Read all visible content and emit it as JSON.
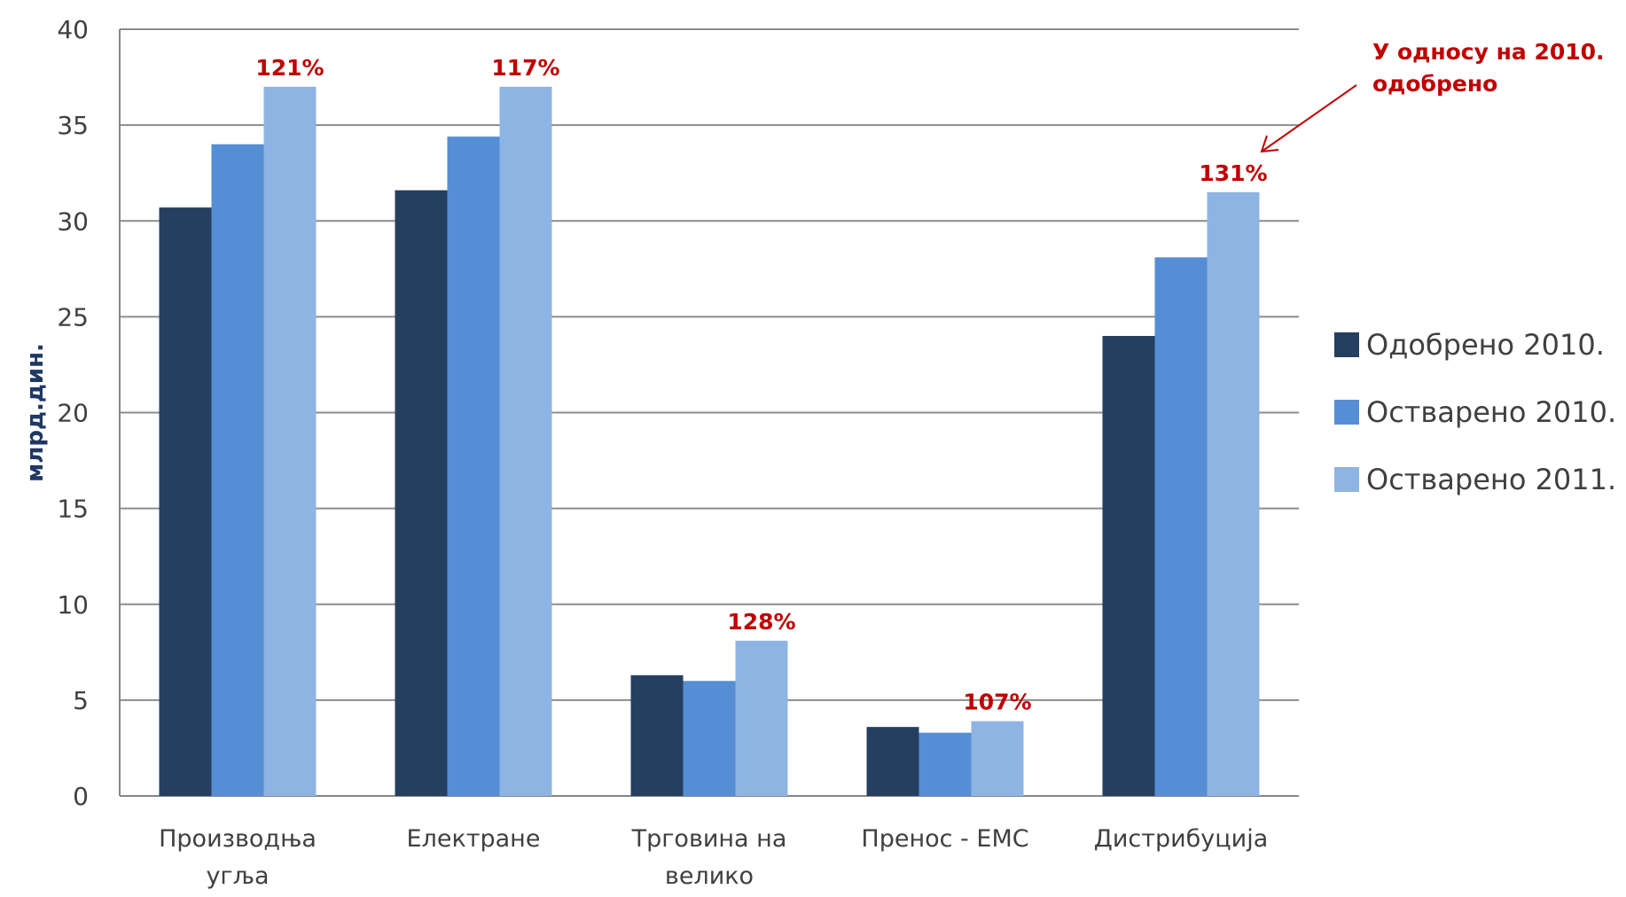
{
  "chart_data": {
    "type": "bar",
    "title": "",
    "xlabel": "",
    "ylabel": "млрд.дин.",
    "ylim": [
      0,
      40
    ],
    "yticks": [
      0,
      5,
      10,
      15,
      20,
      25,
      30,
      35,
      40
    ],
    "grid": true,
    "legend_position": "right",
    "categories": [
      [
        "Производња",
        "угља"
      ],
      [
        "Електране"
      ],
      [
        "Трговина на",
        "велико"
      ],
      [
        "Пренос - ЕМС"
      ],
      [
        "Дистрибуција"
      ]
    ],
    "series": [
      {
        "name": "Одобрено 2010.",
        "color": "#243f60",
        "values": [
          30.7,
          31.6,
          6.3,
          3.6,
          24.0
        ]
      },
      {
        "name": "Остварено 2010.",
        "color": "#558ed5",
        "values": [
          34.0,
          34.4,
          6.0,
          3.3,
          28.1
        ]
      },
      {
        "name": "Остварено 2011.",
        "color": "#8eb4e3",
        "values": [
          37.0,
          37.0,
          8.1,
          3.9,
          31.5
        ]
      }
    ],
    "data_labels": [
      "121%",
      "117%",
      "128%",
      "107%",
      "131%"
    ],
    "annotation": {
      "lines": [
        "У односу на 2010.",
        "одобрено"
      ],
      "color": "#c00000"
    }
  }
}
